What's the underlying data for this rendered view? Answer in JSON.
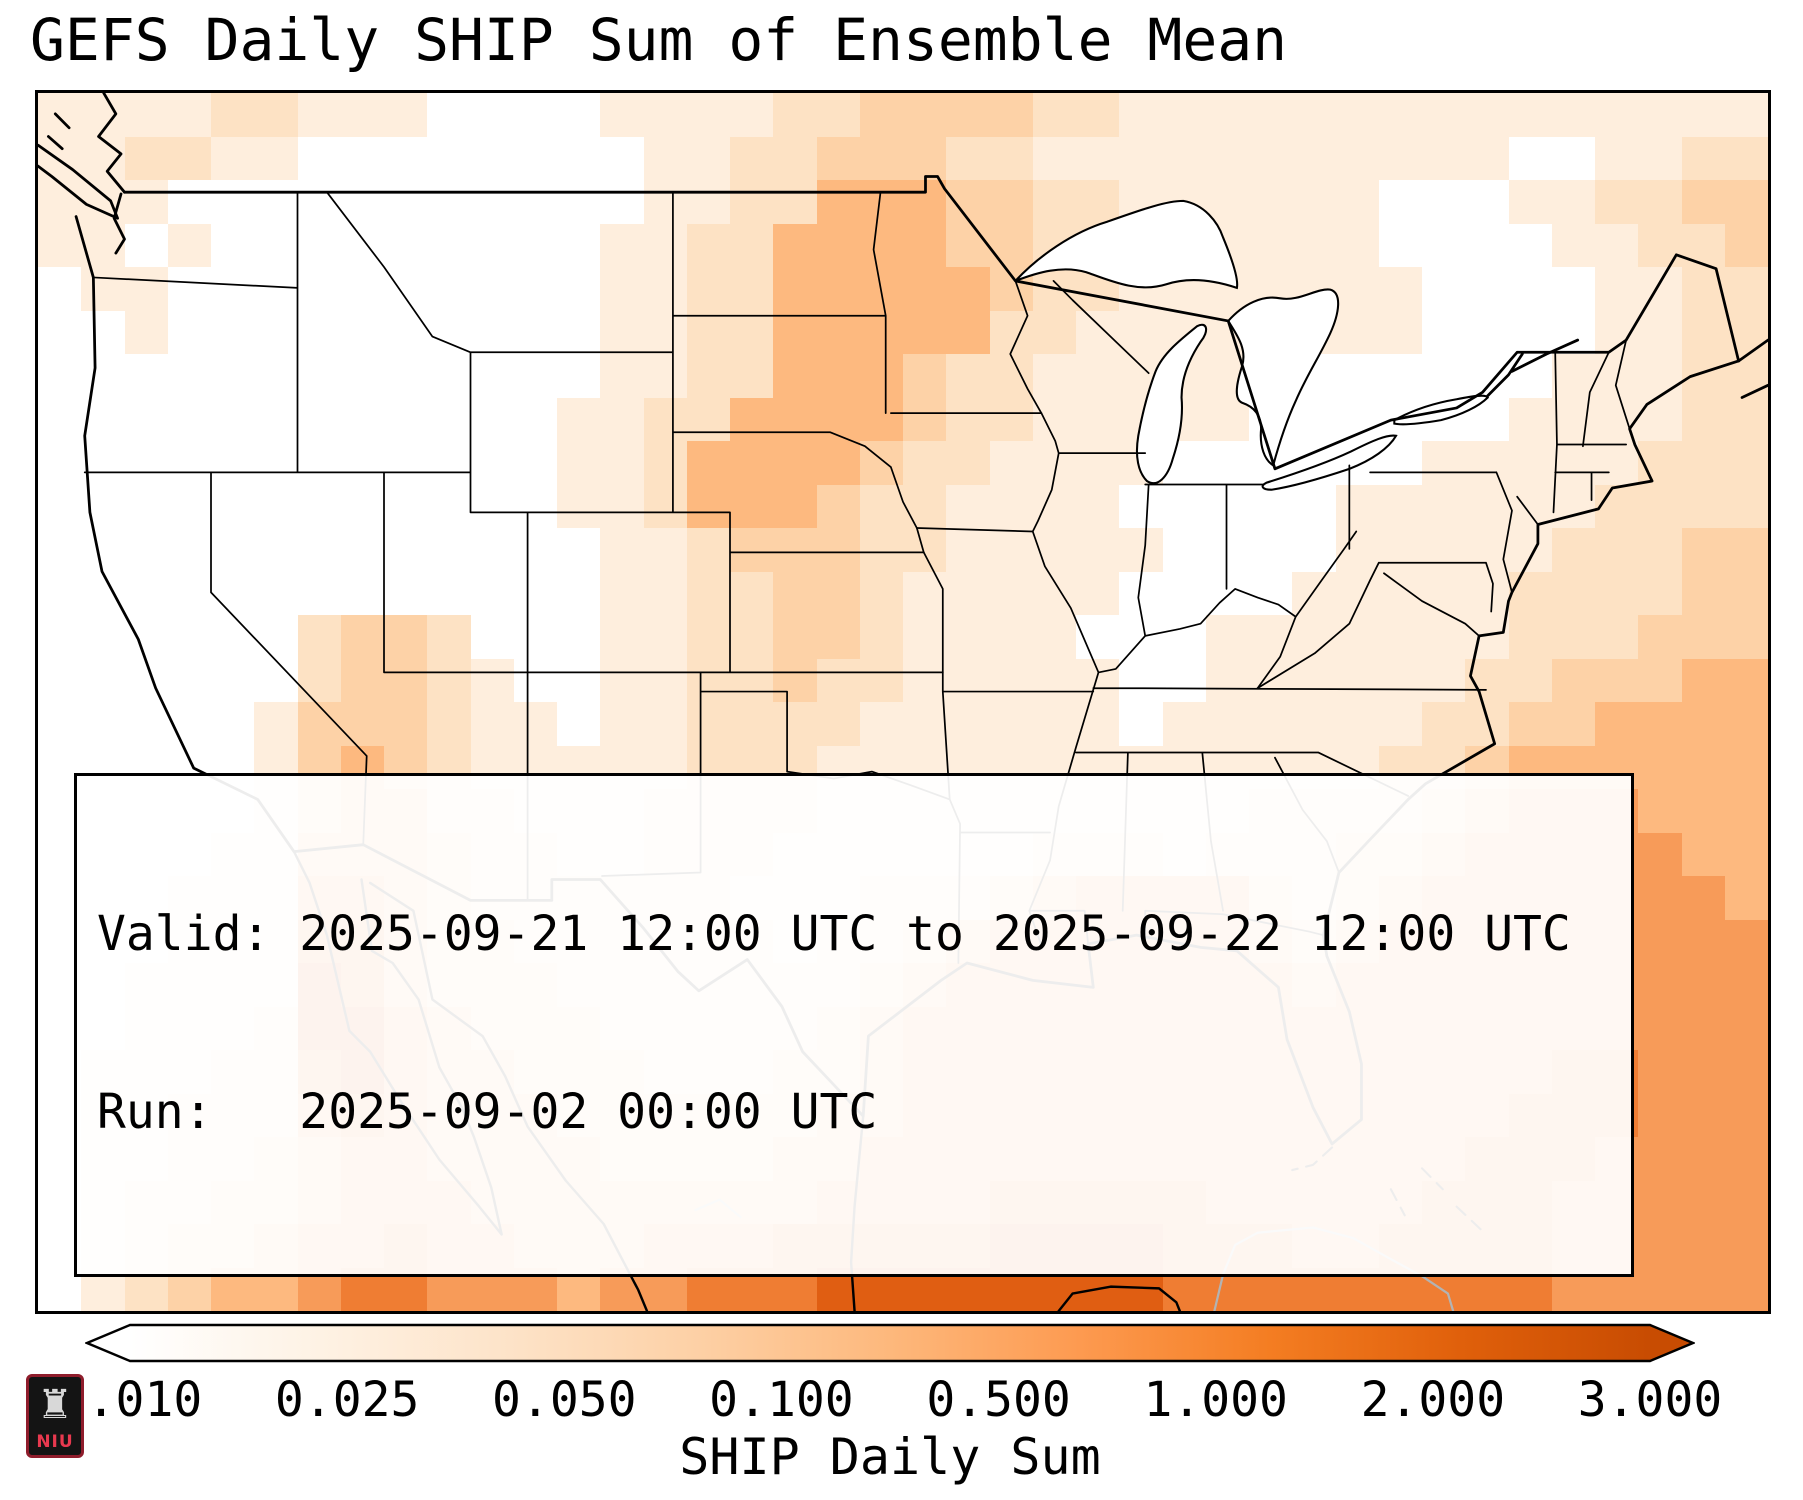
{
  "title": "GEFS Daily SHIP Sum of Ensemble Mean",
  "info_box": {
    "line1": "Valid: 2025-09-21 12:00 UTC to 2025-09-22 12:00 UTC",
    "line2": "Run:   2025-09-02 00:00 UTC"
  },
  "colorbar": {
    "label": "SHIP Daily Sum",
    "ticks": [
      "0.010",
      "0.025",
      "0.050",
      "0.100",
      "0.500",
      "1.000",
      "2.000",
      "3.000"
    ],
    "gradient": [
      "#ffffff",
      "#fef2e4",
      "#fde3c8",
      "#fdd0a5",
      "#fdb87c",
      "#fd9a50",
      "#f47d22",
      "#e0600b",
      "#c84c02"
    ],
    "arrow_low_color": "#ffffff",
    "arrow_high_color": "#c84c02"
  },
  "logo": {
    "text": "NIU",
    "castle_icon": "♜",
    "bg_color": "#141414",
    "accent_color": "#e8394f"
  },
  "map": {
    "description": "CONUS filled-contour field of GEFS ensemble-mean daily SHIP sum; strongest values over the Gulf of Mexico, western Atlantic, Gulf of California / northwest Mexico, and an upper-Midwest corridor",
    "grid_cols": 40,
    "grid_rows": 28,
    "value_colors": {
      "0": "#ffffff",
      "1": "#feeedd",
      "2": "#fde2c4",
      "3": "#fdd2a7",
      "4": "#fdb97f",
      "5": "#f79b59",
      "6": "#ef7d33",
      "7": "#e05e12"
    },
    "grid": [
      [
        "1111221110",
        "0001111223",
        "3332211111",
        "1111111111"
      ],
      [
        "1122110000",
        "0000112233",
        "3221111111",
        "1111001122"
      ],
      [
        "1110000000",
        "0000112244",
        "4332211111",
        "1000112233"
      ],
      [
        "1101000000",
        "0001122444",
        "4332211111",
        "1000011223"
      ],
      [
        "0110000000",
        "0001122444",
        "4432211111",
        "1100001122"
      ],
      [
        "0010000000",
        "0001122444",
        "4422111111",
        "1100001122"
      ],
      [
        "0000000000",
        "0001122444",
        "3221111110",
        "0000011122"
      ],
      [
        "0000000000",
        "0011224444",
        "3221111100",
        "0000111122"
      ],
      [
        "0000000000",
        "0011244443",
        "2211110000",
        "0011111222"
      ],
      [
        "0000000000",
        "0011244432",
        "2111100000",
        "1111112222"
      ],
      [
        "0000000000",
        "0001123332",
        "2111110000",
        "1111122233"
      ],
      [
        "0000000000",
        "0001122332",
        "1111100001",
        "1111222233"
      ],
      [
        "0000002332",
        "0001122332",
        "1111000111",
        "1111222333"
      ],
      [
        "0000002332",
        "1001122322",
        "1111100111",
        "1112233344"
      ],
      [
        "0000013332",
        "1101122221",
        "1111101111",
        "1122334444"
      ],
      [
        "0000013432",
        "1111122211",
        "1111111111",
        "1223444444"
      ],
      [
        "0000013442",
        "2111222211",
        "1111111122",
        "2234555444"
      ],
      [
        "0000114443",
        "2211222111",
        "1112221222",
        "3345555544"
      ],
      [
        "0001115543",
        "2222221112",
        "2234555532",
        "3455555554"
      ],
      [
        "0001116643",
        "3222222122",
        "3455555543",
        "4555555555"
      ],
      [
        "0011117643",
        "3322222223",
        "4555555554",
        "5555555555"
      ],
      [
        "0011127754",
        "3332222234",
        "5555555555",
        "5555555555"
      ],
      [
        "0111226754",
        "4333222334",
        "5555555555",
        "5555566555"
      ],
      [
        "0112225654",
        "4433333344",
        "5555555555",
        "5555666555"
      ],
      [
        "0112234554",
        "4443333445",
        "5555555555",
        "5556665555"
      ],
      [
        "0122334555",
        "4444444455",
        "5566666555",
        "5566655555"
      ],
      [
        "0123345565",
        "5444555666",
        "6677776665",
        "5666655555"
      ],
      [
        "0123445665",
        "5545566677",
        "7777776666",
        "6666655555"
      ]
    ]
  }
}
